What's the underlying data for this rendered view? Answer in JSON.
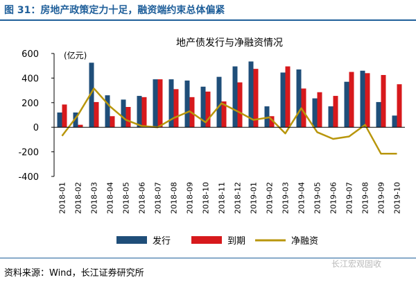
{
  "figure_title": "图 31：房地产政策定力十足，融资端约束总体偏紧",
  "source_note": "资料来源：Wind，长江证券研究所",
  "watermark": "长江宏观固收",
  "colors": {
    "issuance": "#1f4e79",
    "maturity": "#d7191c",
    "net_financing": "#b8960c",
    "title_accent": "#1f5f9a"
  },
  "chart_data": {
    "type": "bar",
    "title": "地产债发行与净融资情况",
    "unit_label": "(亿元)",
    "ylim": [
      -400,
      600
    ],
    "yticks": [
      -400,
      -200,
      0,
      200,
      400,
      600
    ],
    "legend_position": "bottom",
    "grid": false,
    "categories": [
      "2018-01",
      "2018-02",
      "2018-03",
      "2018-04",
      "2018-05",
      "2018-06",
      "2018-07",
      "2018-08",
      "2018-09",
      "2018-10",
      "2018-11",
      "2018-12",
      "2019-01",
      "2019-02",
      "2019-03",
      "2019-04",
      "2019-05",
      "2019-06",
      "2019-07",
      "2019-08",
      "2019-09",
      "2019-10"
    ],
    "series": [
      {
        "name": "发行",
        "kind": "bar",
        "values": [
          120,
          120,
          525,
          260,
          225,
          255,
          390,
          390,
          380,
          330,
          410,
          495,
          535,
          170,
          445,
          470,
          235,
          170,
          370,
          460,
          205,
          95
        ]
      },
      {
        "name": "到期",
        "kind": "bar",
        "values": [
          185,
          20,
          205,
          90,
          165,
          245,
          390,
          310,
          245,
          290,
          210,
          365,
          475,
          90,
          495,
          315,
          285,
          255,
          450,
          440,
          425,
          350
        ]
      },
      {
        "name": "净融资",
        "kind": "line",
        "values": [
          -70,
          100,
          315,
          170,
          60,
          10,
          0,
          75,
          130,
          40,
          195,
          130,
          60,
          80,
          -50,
          155,
          -40,
          -95,
          -75,
          20,
          -215,
          -215
        ]
      }
    ]
  }
}
